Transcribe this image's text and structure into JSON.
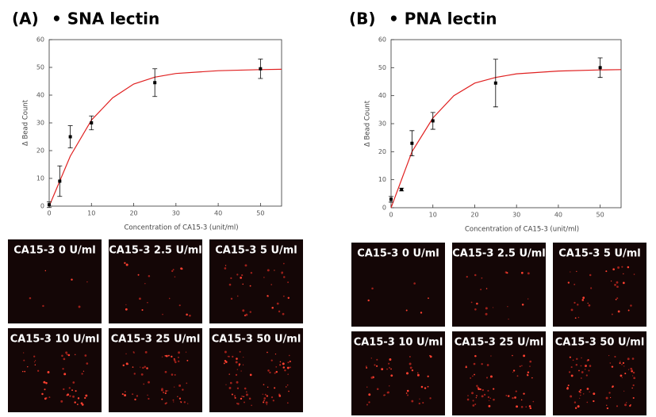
{
  "chart_data": [
    {
      "type": "scatter",
      "label": "(A)",
      "title": "• SNA lectin",
      "x_label": "Concentration of CA15-3 (unit/ml)",
      "y_label": "Δ Bead Count",
      "x": [
        0,
        2.5,
        5,
        10,
        25,
        50
      ],
      "values": [
        0.5,
        9,
        25,
        30,
        44.5,
        49.5
      ],
      "errors": [
        1,
        5.5,
        4,
        2.5,
        5,
        3.5
      ],
      "color": "#000000",
      "fit": {
        "x": [
          0,
          5,
          10,
          15,
          20,
          25,
          30,
          40,
          50,
          55
        ],
        "values": [
          0,
          18,
          31,
          39,
          44,
          46.5,
          47.8,
          48.8,
          49.2,
          49.3
        ],
        "color": "#e02020"
      },
      "xlim": [
        0,
        55
      ],
      "ylim": [
        0,
        60
      ],
      "xticks": [
        0,
        10,
        20,
        30,
        40,
        50
      ],
      "yticks": [
        0,
        10,
        20,
        30,
        40,
        50,
        60
      ]
    },
    {
      "type": "scatter",
      "label": "(B)",
      "title": "• PNA lectin",
      "x_label": "Concentration of CA15-3 (unit/ml)",
      "y_label": "Δ Bead Count",
      "x": [
        0,
        2.5,
        5,
        10,
        25,
        50
      ],
      "values": [
        3,
        6.5,
        23,
        31,
        44.5,
        50
      ],
      "errors": [
        1,
        0.5,
        4.5,
        3,
        8.5,
        3.5
      ],
      "color": "#000000",
      "fit": {
        "x": [
          0,
          5,
          10,
          15,
          20,
          25,
          30,
          40,
          50,
          55
        ],
        "values": [
          0,
          20,
          32,
          40,
          44.5,
          46.5,
          47.8,
          48.8,
          49.2,
          49.3
        ],
        "color": "#e02020"
      },
      "xlim": [
        0,
        55
      ],
      "ylim": [
        0,
        60
      ],
      "xticks": [
        0,
        10,
        20,
        30,
        40,
        50
      ],
      "yticks": [
        0,
        10,
        20,
        30,
        40,
        50,
        60
      ]
    }
  ],
  "panels": [
    [
      "CA15-3 0 U/ml",
      "CA15-3 2.5 U/ml",
      "CA15-3 5 U/ml",
      "CA15-3 10 U/ml",
      "CA15-3 25 U/ml",
      "CA15-3 50 U/ml"
    ],
    [
      "CA15-3 0 U/ml",
      "CA15-3 2.5 U/ml",
      "CA15-3 5 U/ml",
      "CA15-3 10 U/ml",
      "CA15-3 25 U/ml",
      "CA15-3 50 U/ml"
    ]
  ]
}
